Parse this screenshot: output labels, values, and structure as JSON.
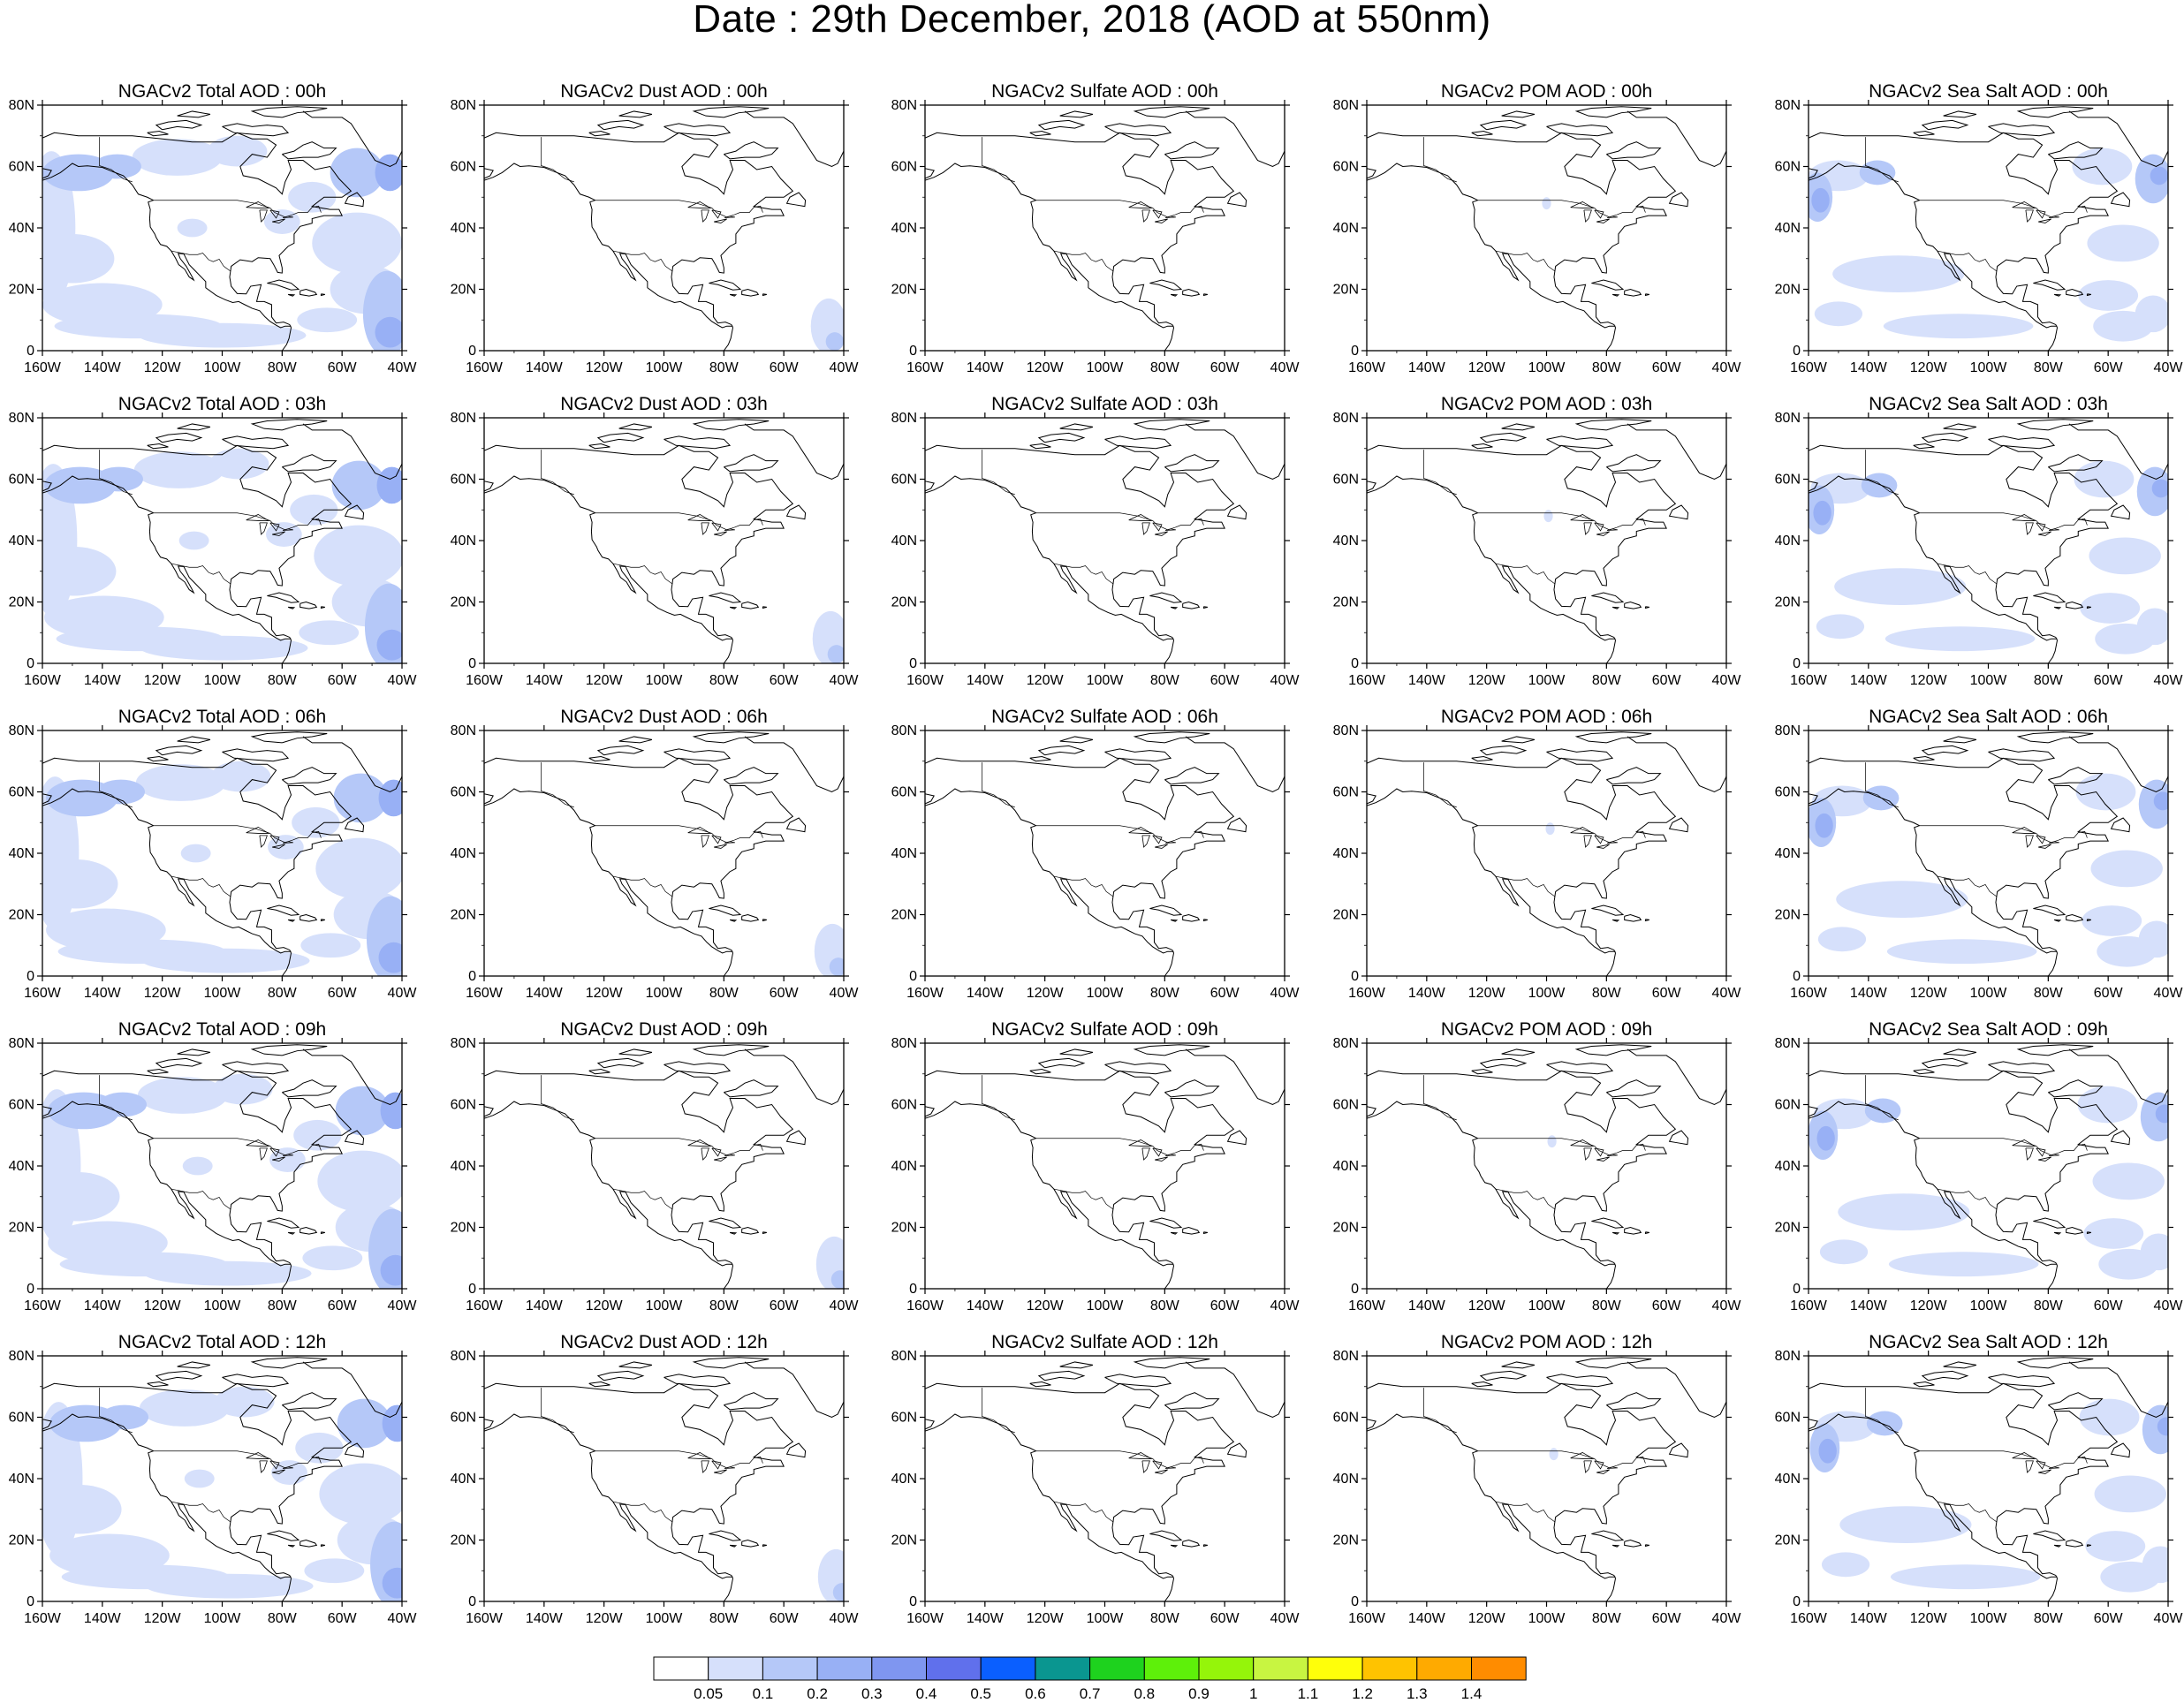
{
  "title": "Date : 29th December, 2018 (AOD at 550nm)",
  "map": {
    "lat_labels": [
      "0",
      "20N",
      "40N",
      "60N",
      "80N"
    ],
    "lon_labels": [
      "160W",
      "140W",
      "120W",
      "100W",
      "80W",
      "60W",
      "40W"
    ],
    "lat_range": [
      0,
      80
    ],
    "lon_range": [
      -160,
      -40
    ]
  },
  "panels": [
    [
      {
        "title": "NGACv2 Total AOD : 00h",
        "field": "total"
      },
      {
        "title": "NGACv2 Dust AOD : 00h",
        "field": "dust"
      },
      {
        "title": "NGACv2 Sulfate AOD : 00h",
        "field": "sulfate"
      },
      {
        "title": "NGACv2 POM AOD : 00h",
        "field": "pom"
      },
      {
        "title": "NGACv2 Sea Salt AOD : 00h",
        "field": "seasalt"
      }
    ],
    [
      {
        "title": "NGACv2 Total AOD : 03h",
        "field": "total"
      },
      {
        "title": "NGACv2 Dust AOD : 03h",
        "field": "dust"
      },
      {
        "title": "NGACv2 Sulfate AOD : 03h",
        "field": "sulfate"
      },
      {
        "title": "NGACv2 POM AOD : 03h",
        "field": "pom"
      },
      {
        "title": "NGACv2 Sea Salt AOD : 03h",
        "field": "seasalt"
      }
    ],
    [
      {
        "title": "NGACv2 Total AOD : 06h",
        "field": "total"
      },
      {
        "title": "NGACv2 Dust AOD : 06h",
        "field": "dust"
      },
      {
        "title": "NGACv2 Sulfate AOD : 06h",
        "field": "sulfate"
      },
      {
        "title": "NGACv2 POM AOD : 06h",
        "field": "pom"
      },
      {
        "title": "NGACv2 Sea Salt AOD : 06h",
        "field": "seasalt"
      }
    ],
    [
      {
        "title": "NGACv2 Total AOD : 09h",
        "field": "total"
      },
      {
        "title": "NGACv2 Dust AOD : 09h",
        "field": "dust"
      },
      {
        "title": "NGACv2 Sulfate AOD : 09h",
        "field": "sulfate"
      },
      {
        "title": "NGACv2 POM AOD : 09h",
        "field": "pom"
      },
      {
        "title": "NGACv2 Sea Salt  AOD : 09h",
        "field": "seasalt"
      }
    ],
    [
      {
        "title": "NGACv2 Total AOD  : 12h",
        "field": "total"
      },
      {
        "title": "NGACv2 Dust AOD : 12h",
        "field": "dust"
      },
      {
        "title": "NGACv2 Sulfate AOD : 12h",
        "field": "sulfate"
      },
      {
        "title": "NGACv2 POM  AOD : 12h",
        "field": "pom"
      },
      {
        "title": "NGACv2 Sea Salt  AOD : 12h",
        "field": "seasalt"
      }
    ]
  ],
  "colorbar": {
    "labels": [
      "0.05",
      "0.1",
      "0.2",
      "0.3",
      "0.4",
      "0.5",
      "0.6",
      "0.7",
      "0.8",
      "0.9",
      "1",
      "1.1",
      "1.2",
      "1.3",
      "1.4"
    ],
    "colors": [
      "#ffffff",
      "#d6e0fb",
      "#b5c8f8",
      "#98b0f5",
      "#7f96f0",
      "#6070ec",
      "#0a5fff",
      "#0a9690",
      "#1ed21e",
      "#5ef00a",
      "#95f50a",
      "#c8f541",
      "#ffff0a",
      "#ffc300",
      "#ffaa00",
      "#ff8c00",
      "#ff6e00",
      "#ff2800"
    ]
  },
  "colors": {
    "low": "#d6e0fb",
    "medium": "#b5c8f8",
    "high": "#98b0f5",
    "peak": "#7f96f0"
  }
}
